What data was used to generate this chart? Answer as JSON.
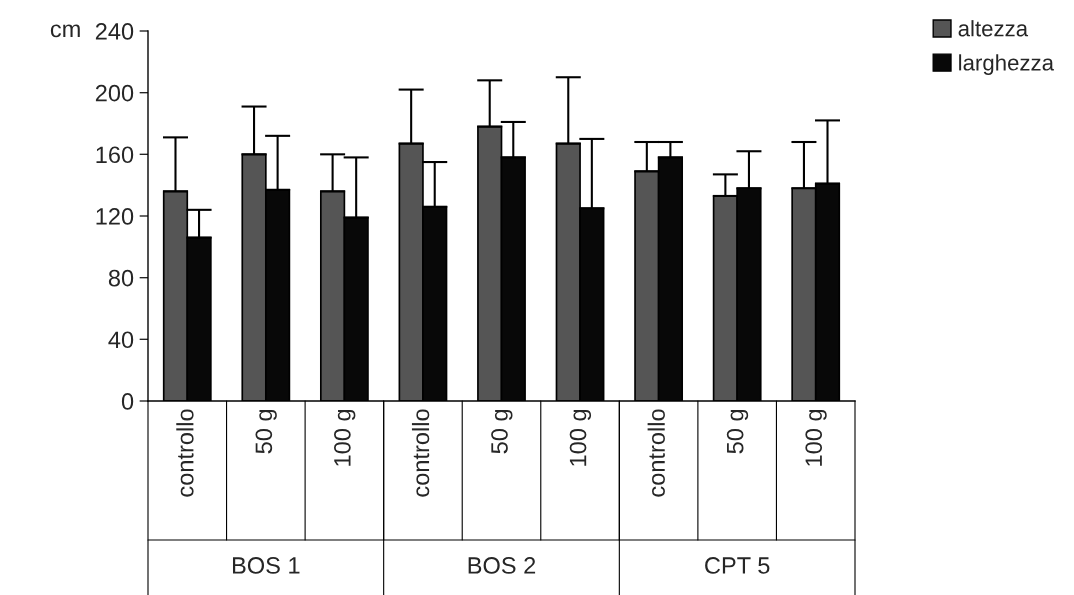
{
  "chart_data": {
    "type": "bar",
    "categories": [
      "controllo",
      "50 g",
      "100 g",
      "controllo",
      "50 g",
      "100 g",
      "controllo",
      "50 g",
      "100 g"
    ],
    "annotations": [
      "BOS 1",
      "BOS 2",
      "CPT 5"
    ],
    "ylabel": "cm",
    "series": [
      {
        "name": "altezza",
        "color": "#555555",
        "values": [
          136,
          160,
          136,
          167,
          178,
          167,
          149,
          133,
          138
        ],
        "errors": [
          [
            136,
            171
          ],
          [
            160,
            191
          ],
          [
            136,
            160
          ],
          [
            167,
            202
          ],
          [
            178,
            208
          ],
          [
            167,
            210
          ],
          [
            149,
            168
          ],
          [
            133,
            147
          ],
          [
            138,
            168
          ]
        ]
      },
      {
        "name": "larghezza",
        "color": "#080808",
        "values": [
          106,
          137,
          119,
          126,
          158,
          125,
          158,
          138,
          141
        ],
        "errors": [
          [
            106,
            124
          ],
          [
            137,
            172
          ],
          [
            119,
            158
          ],
          [
            126,
            155
          ],
          [
            158,
            181
          ],
          [
            125,
            170
          ],
          [
            158,
            168
          ],
          [
            138,
            162
          ],
          [
            141,
            182
          ]
        ]
      }
    ],
    "ylim": [
      0,
      240
    ],
    "yticks": [
      0,
      40,
      80,
      120,
      160,
      200,
      240
    ],
    "legend": "top right",
    "grid": false
  }
}
